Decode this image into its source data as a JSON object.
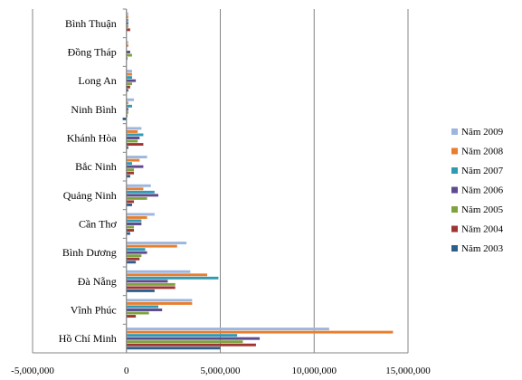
{
  "chart_data": {
    "type": "bar",
    "orientation": "horizontal",
    "categories": [
      "Hồ Chí Minh",
      "Vĩnh Phúc",
      "Đà Nẵng",
      "Bình Dương",
      "Cần Thơ",
      "Quảng Ninh",
      "Bắc Ninh",
      "Khánh Hòa",
      "Ninh Bình",
      "Long An",
      "Đồng Tháp",
      "Bình Thuận"
    ],
    "series": [
      {
        "name": "Năm 2003",
        "color": "#2E5F8A",
        "values": [
          5000000,
          0,
          1500000,
          500000,
          200000,
          300000,
          200000,
          100000,
          -200000,
          100000,
          0,
          0
        ]
      },
      {
        "name": "Năm 2004",
        "color": "#9E3532",
        "values": [
          6900000,
          500000,
          2600000,
          700000,
          400000,
          400000,
          400000,
          900000,
          50000,
          200000,
          50000,
          200000
        ]
      },
      {
        "name": "Năm 2005",
        "color": "#7EA33D",
        "values": [
          6200000,
          1200000,
          2600000,
          800000,
          400000,
          1100000,
          400000,
          600000,
          100000,
          300000,
          300000,
          100000
        ]
      },
      {
        "name": "Năm 2006",
        "color": "#5E4A8E",
        "values": [
          7100000,
          1900000,
          2200000,
          1100000,
          800000,
          1700000,
          900000,
          700000,
          100000,
          500000,
          200000,
          100000
        ]
      },
      {
        "name": "Năm 2007",
        "color": "#2F9BB3",
        "values": [
          5900000,
          1700000,
          4900000,
          1000000,
          800000,
          1500000,
          300000,
          900000,
          300000,
          300000,
          0,
          100000
        ]
      },
      {
        "name": "Năm 2008",
        "color": "#E97E2E",
        "values": [
          14200000,
          3500000,
          4300000,
          2700000,
          1100000,
          900000,
          700000,
          600000,
          100000,
          300000,
          100000,
          100000
        ]
      },
      {
        "name": "Năm 2009",
        "color": "#9CB6DE",
        "values": [
          10800000,
          3500000,
          3400000,
          3200000,
          1500000,
          1300000,
          1100000,
          800000,
          400000,
          300000,
          100000,
          100000
        ]
      }
    ],
    "x_ticks": [
      "-5,000,000",
      "0",
      "5,000,000",
      "10,000,000",
      "15,000,000"
    ],
    "xlim": [
      -5000000,
      15000000
    ],
    "grid": true,
    "legend_position": "right"
  }
}
